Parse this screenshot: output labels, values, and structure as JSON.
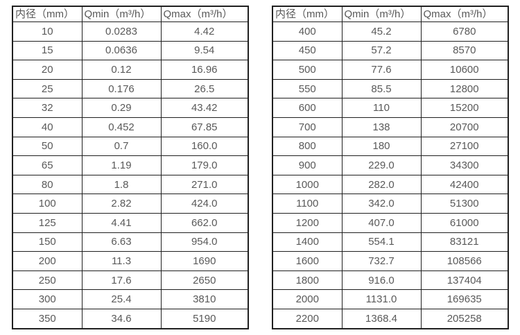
{
  "page": {
    "background": "#ffffff",
    "text_color": "#595959",
    "border_color": "#1f1f1f"
  },
  "tables": [
    {
      "name": "small-diameter-flow-table",
      "headers": [
        "内径（mm）",
        "Qmin（m³/h）",
        "Qmax（m³/h）"
      ],
      "rows": [
        [
          "10",
          "0.0283",
          "4.42"
        ],
        [
          "15",
          "0.0636",
          "9.54"
        ],
        [
          "20",
          "0.12",
          "16.96"
        ],
        [
          "25",
          "0.176",
          "26.5"
        ],
        [
          "32",
          "0.29",
          "43.42"
        ],
        [
          "40",
          "0.452",
          "67.85"
        ],
        [
          "50",
          "0.7",
          "160.0"
        ],
        [
          "65",
          "1.19",
          "179.0"
        ],
        [
          "80",
          "1.8",
          "271.0"
        ],
        [
          "100",
          "2.82",
          "424.0"
        ],
        [
          "125",
          "4.41",
          "662.0"
        ],
        [
          "150",
          "6.63",
          "954.0"
        ],
        [
          "200",
          "11.3",
          "1690"
        ],
        [
          "250",
          "17.6",
          "2650"
        ],
        [
          "300",
          "25.4",
          "3810"
        ],
        [
          "350",
          "34.6",
          "5190"
        ]
      ]
    },
    {
      "name": "large-diameter-flow-table",
      "headers": [
        "内径（mm）",
        "Qmin（m³/h）",
        "Qmax（m³/h）"
      ],
      "rows": [
        [
          "400",
          "45.2",
          "6780"
        ],
        [
          "450",
          "57.2",
          "8570"
        ],
        [
          "500",
          "77.6",
          "10600"
        ],
        [
          "550",
          "85.5",
          "12800"
        ],
        [
          "600",
          "110",
          "15200"
        ],
        [
          "700",
          "138",
          "20700"
        ],
        [
          "800",
          "180",
          "27100"
        ],
        [
          "900",
          "229.0",
          "34300"
        ],
        [
          "1000",
          "282.0",
          "42400"
        ],
        [
          "1100",
          "342.0",
          "51300"
        ],
        [
          "1200",
          "407.0",
          "61000"
        ],
        [
          "1400",
          "554.1",
          "83121"
        ],
        [
          "1600",
          "732.7",
          "108566"
        ],
        [
          "1800",
          "916.0",
          "137404"
        ],
        [
          "2000",
          "1131.0",
          "169635"
        ],
        [
          "2200",
          "1368.4",
          "205258"
        ]
      ]
    }
  ]
}
